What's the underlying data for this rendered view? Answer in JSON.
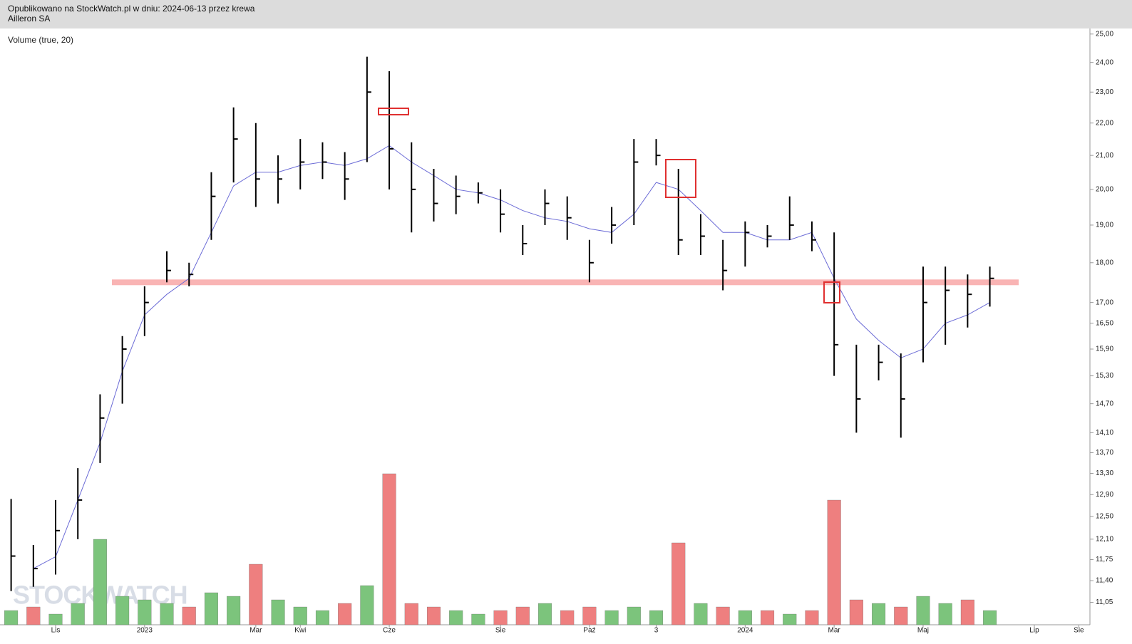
{
  "header": {
    "line1": "Opublikowano na StockWatch.pl w dniu: 2024-06-13 przez krewa",
    "line2": "Ailleron SA"
  },
  "watermark": "STOCKWATCH",
  "chart_data": {
    "type": "hlc",
    "indicator_label": "Volume (true, 20)",
    "log_scale": true,
    "ylim": [
      10.7,
      25.2
    ],
    "yticks": [
      {
        "value": 25,
        "label": "25,00"
      },
      {
        "value": 24,
        "label": "24,00"
      },
      {
        "value": 23,
        "label": "23,00"
      },
      {
        "value": 22,
        "label": "22,00"
      },
      {
        "value": 21,
        "label": "21,00"
      },
      {
        "value": 20,
        "label": "20,00"
      },
      {
        "value": 19,
        "label": "19,00"
      },
      {
        "value": 18,
        "label": "18,00"
      },
      {
        "value": 17,
        "label": "17,00"
      },
      {
        "value": 16.5,
        "label": "16,50"
      },
      {
        "value": 15.9,
        "label": "15,90"
      },
      {
        "value": 15.3,
        "label": "15,30"
      },
      {
        "value": 14.7,
        "label": "14,70"
      },
      {
        "value": 14.1,
        "label": "14,10"
      },
      {
        "value": 13.7,
        "label": "13,70"
      },
      {
        "value": 13.3,
        "label": "13,30"
      },
      {
        "value": 12.9,
        "label": "12,90"
      },
      {
        "value": 12.5,
        "label": "12,50"
      },
      {
        "value": 12.1,
        "label": "12,10"
      },
      {
        "value": 11.75,
        "label": "11,75"
      },
      {
        "value": 11.4,
        "label": "11,40"
      },
      {
        "value": 11.05,
        "label": "11,05"
      }
    ],
    "categories": [
      null,
      null,
      "Lis",
      null,
      null,
      null,
      "2023",
      null,
      null,
      null,
      null,
      "Mar",
      null,
      "Kwi",
      null,
      null,
      null,
      "Cze",
      null,
      null,
      null,
      null,
      "Sie",
      null,
      null,
      null,
      "Paź",
      null,
      null,
      "3",
      null,
      null,
      null,
      "2024",
      null,
      null,
      null,
      "Mar",
      null,
      null,
      null,
      "Maj",
      null,
      null,
      null,
      null,
      "Lip",
      null,
      "Sie"
    ],
    "high": [
      12.82,
      12.0,
      12.8,
      13.4,
      14.9,
      16.2,
      17.4,
      18.3,
      18.0,
      20.5,
      22.5,
      22.0,
      21.0,
      21.5,
      21.4,
      21.1,
      24.2,
      23.7,
      21.4,
      20.6,
      20.4,
      20.2,
      20.0,
      19.0,
      20.0,
      19.8,
      18.6,
      19.5,
      21.5,
      21.5,
      20.6,
      19.3,
      18.6,
      19.1,
      19.0,
      19.8,
      19.1,
      18.8,
      16.0,
      16.0,
      15.8,
      17.9,
      17.9,
      17.7,
      17.9,
      null,
      null,
      null,
      null
    ],
    "low": [
      11.23,
      11.3,
      11.5,
      12.1,
      13.5,
      14.7,
      16.2,
      17.5,
      17.4,
      18.6,
      20.2,
      19.5,
      19.6,
      20.0,
      20.3,
      19.7,
      20.8,
      20.0,
      18.8,
      19.1,
      19.3,
      19.6,
      18.8,
      18.2,
      19.0,
      18.6,
      17.5,
      18.5,
      19.0,
      20.7,
      18.2,
      18.2,
      17.3,
      17.9,
      18.4,
      18.6,
      18.3,
      15.3,
      14.1,
      15.2,
      14.0,
      15.6,
      16.0,
      16.4,
      16.9,
      null,
      null,
      null,
      null
    ],
    "close": [
      11.81,
      11.6,
      12.25,
      12.8,
      14.4,
      15.9,
      17.0,
      17.8,
      17.7,
      19.8,
      21.5,
      20.3,
      20.3,
      20.8,
      20.8,
      20.3,
      23.0,
      21.2,
      20.0,
      19.6,
      19.8,
      19.9,
      19.3,
      18.5,
      19.6,
      19.2,
      18.0,
      19.0,
      20.8,
      21.0,
      18.6,
      18.7,
      17.8,
      18.8,
      18.7,
      19.0,
      18.6,
      16.0,
      14.8,
      15.6,
      14.8,
      17.0,
      17.3,
      17.2,
      17.6,
      null,
      null,
      null,
      null
    ],
    "moving_average": {
      "color": "#6b6bd6",
      "values": [
        null,
        11.6,
        11.8,
        12.8,
        13.9,
        15.4,
        16.7,
        17.2,
        17.6,
        18.8,
        20.1,
        20.5,
        20.5,
        20.7,
        20.8,
        20.7,
        20.9,
        21.3,
        20.8,
        20.4,
        20.0,
        19.9,
        19.7,
        19.4,
        19.2,
        19.1,
        18.9,
        18.8,
        19.3,
        20.2,
        20.0,
        19.4,
        18.8,
        18.8,
        18.6,
        18.6,
        18.8,
        17.6,
        16.6,
        16.1,
        15.7,
        15.9,
        16.5,
        16.7,
        17.0,
        null,
        null,
        null,
        null
      ]
    },
    "volume": [
      20,
      25,
      15,
      30,
      120,
      40,
      35,
      30,
      25,
      45,
      40,
      85,
      35,
      25,
      20,
      30,
      55,
      212,
      30,
      25,
      20,
      15,
      20,
      25,
      30,
      20,
      25,
      20,
      25,
      20,
      115,
      30,
      25,
      20,
      20,
      15,
      20,
      175,
      35,
      30,
      25,
      40,
      30,
      35,
      20,
      null,
      null,
      null,
      null
    ],
    "up_color": "#7cc47c",
    "down_color": "#ee7f7f",
    "price_color": "#000000",
    "support_level": {
      "value": 17.5,
      "color": "#f9b4b4"
    }
  }
}
